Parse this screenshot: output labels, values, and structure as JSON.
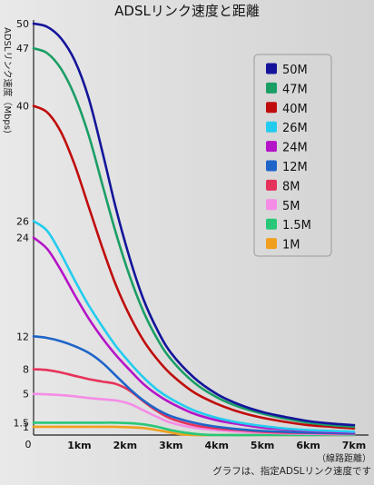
{
  "chart_data": {
    "type": "line",
    "title": "ADSLリンク速度と距離",
    "ylabel": "ADSLリンク速度（Mbps)",
    "xlabel": "（線路距離）",
    "footnote": "グラフは、指定ADSLリンク速度です",
    "xlim": [
      0,
      7
    ],
    "ylim": [
      0,
      50
    ],
    "x_ticks": [
      {
        "value": 1,
        "label": "1km"
      },
      {
        "value": 2,
        "label": "2km"
      },
      {
        "value": 3,
        "label": "3km"
      },
      {
        "value": 4,
        "label": "4km"
      },
      {
        "value": 5,
        "label": "5km"
      },
      {
        "value": 6,
        "label": "6km"
      },
      {
        "value": 7,
        "label": "7km"
      }
    ],
    "x_origin_label": "0",
    "y_ticks": [
      {
        "value": 50,
        "label": "50"
      },
      {
        "value": 47,
        "label": "47"
      },
      {
        "value": 40,
        "label": "40"
      },
      {
        "value": 26,
        "label": "26"
      },
      {
        "value": 24,
        "label": "24"
      },
      {
        "value": 12,
        "label": "12"
      },
      {
        "value": 8,
        "label": "8"
      },
      {
        "value": 5,
        "label": "5"
      },
      {
        "value": 1.5,
        "label": "1.5"
      },
      {
        "value": 1,
        "label": "1"
      }
    ],
    "grid": false,
    "legend_position": "top-right",
    "series": [
      {
        "name": "50M",
        "color": "#14149a",
        "x": [
          0,
          0.3,
          0.6,
          0.9,
          1.2,
          1.5,
          1.8,
          2.1,
          2.4,
          2.7,
          3.0,
          3.5,
          4.0,
          4.5,
          5.0,
          5.5,
          6.0,
          6.5,
          7.0
        ],
        "y": [
          50,
          49.6,
          48.2,
          45.5,
          41,
          34.5,
          27.5,
          21.5,
          16.5,
          12.8,
          10,
          7,
          5,
          3.7,
          2.8,
          2.2,
          1.7,
          1.4,
          1.2
        ]
      },
      {
        "name": "47M",
        "color": "#1a9e66",
        "x": [
          0,
          0.3,
          0.6,
          0.9,
          1.2,
          1.5,
          1.8,
          2.1,
          2.4,
          2.7,
          3.0,
          3.5,
          4.0,
          4.5,
          5.0,
          5.5,
          6.0,
          6.5,
          7.0
        ],
        "y": [
          47,
          46.4,
          44.5,
          41.2,
          36.5,
          30.5,
          24.5,
          19.3,
          15,
          11.7,
          9.2,
          6.4,
          4.6,
          3.4,
          2.6,
          2.0,
          1.5,
          1.2,
          1.0
        ]
      },
      {
        "name": "40M",
        "color": "#c00c0c",
        "x": [
          0,
          0.3,
          0.6,
          0.9,
          1.2,
          1.5,
          1.8,
          2.1,
          2.4,
          2.7,
          3.0,
          3.5,
          4.0,
          4.5,
          5.0,
          5.5,
          6.0,
          6.5,
          7.0
        ],
        "y": [
          40,
          39.2,
          36.8,
          32.8,
          27.8,
          22.8,
          18.2,
          14.5,
          11.5,
          9.2,
          7.4,
          5.2,
          3.8,
          2.8,
          2.1,
          1.6,
          1.2,
          1.0,
          0.8
        ]
      },
      {
        "name": "26M",
        "color": "#22ccee",
        "x": [
          0,
          0.3,
          0.6,
          0.9,
          1.2,
          1.5,
          1.8,
          2.1,
          2.4,
          2.7,
          3.0,
          3.5,
          4.0,
          4.5,
          5.0,
          5.5,
          6.0,
          6.5,
          7.0
        ],
        "y": [
          26,
          24.8,
          22,
          18.8,
          15.8,
          13.2,
          10.8,
          8.8,
          7.0,
          5.5,
          4.4,
          3.0,
          2.1,
          1.5,
          1.1,
          0.8,
          0.6,
          0.5,
          0.4
        ]
      },
      {
        "name": "24M",
        "color": "#b414c8",
        "x": [
          0,
          0.3,
          0.6,
          0.9,
          1.2,
          1.5,
          1.8,
          2.1,
          2.4,
          2.7,
          3.0,
          3.5,
          4.0,
          4.5,
          5.0,
          5.5,
          6.0,
          6.5,
          7.0
        ],
        "y": [
          24,
          22.6,
          20,
          17,
          14.2,
          11.8,
          9.7,
          7.9,
          6.2,
          4.9,
          3.9,
          2.6,
          1.8,
          1.3,
          0.9,
          0.7,
          0.5,
          0.4,
          0.3
        ]
      },
      {
        "name": "12M",
        "color": "#1e64c8",
        "x": [
          0,
          0.3,
          0.6,
          0.9,
          1.2,
          1.5,
          1.8,
          2.1,
          2.4,
          2.7,
          3.0,
          3.5,
          4.0,
          4.5,
          5.0,
          5.5,
          6.0,
          6.5,
          7.0
        ],
        "y": [
          12,
          11.8,
          11.4,
          10.8,
          10,
          8.8,
          7.2,
          5.6,
          4.2,
          3.1,
          2.3,
          1.5,
          1.0,
          0.7,
          0.5,
          0.4,
          0.3,
          0.25,
          0.2
        ]
      },
      {
        "name": "8M",
        "color": "#e6325a",
        "x": [
          0,
          0.3,
          0.6,
          0.9,
          1.2,
          1.5,
          1.8,
          2.1,
          2.4,
          2.7,
          3.0,
          3.5,
          4.0,
          4.5,
          5.0,
          5.5,
          6.0,
          6.5,
          7.0
        ],
        "y": [
          8,
          7.9,
          7.6,
          7.2,
          6.8,
          6.5,
          6.2,
          5.4,
          4.1,
          2.9,
          2.0,
          1.2,
          0.8,
          0.6,
          0.4,
          0.3,
          0.25,
          0.2,
          0.15
        ]
      },
      {
        "name": "5M",
        "color": "#f58ce6",
        "x": [
          0,
          0.3,
          0.6,
          0.9,
          1.2,
          1.5,
          1.8,
          2.1,
          2.4,
          2.7,
          3.0,
          3.5,
          4.0,
          4.5,
          5.0,
          5.5,
          6.0,
          6.5,
          7.0
        ],
        "y": [
          5,
          4.95,
          4.85,
          4.7,
          4.5,
          4.35,
          4.2,
          3.8,
          3.0,
          2.2,
          1.5,
          0.9,
          0.6,
          0.4,
          0.3,
          0.2,
          0.15,
          0.1,
          0.1
        ]
      },
      {
        "name": "1.5M",
        "color": "#28c878",
        "x": [
          0,
          0.3,
          0.6,
          0.9,
          1.2,
          1.5,
          1.8,
          2.1,
          2.4,
          2.7,
          3.0,
          3.3,
          3.6,
          4.0,
          5.0,
          6.0,
          7.0
        ],
        "y": [
          1.5,
          1.5,
          1.5,
          1.5,
          1.5,
          1.5,
          1.5,
          1.45,
          1.3,
          1.0,
          0.6,
          0.3,
          0.1,
          0,
          0,
          0,
          0
        ]
      },
      {
        "name": "1M",
        "color": "#f0a01e",
        "x": [
          0,
          0.3,
          0.6,
          0.9,
          1.2,
          1.5,
          1.8,
          2.1,
          2.4,
          2.7,
          3.0,
          3.2,
          3.5,
          4.0,
          5.0,
          6.0,
          7.0
        ],
        "y": [
          1,
          1,
          1,
          1,
          1,
          1,
          1,
          0.95,
          0.85,
          0.6,
          0.3,
          0.1,
          0,
          0,
          0,
          0,
          0
        ]
      }
    ]
  }
}
